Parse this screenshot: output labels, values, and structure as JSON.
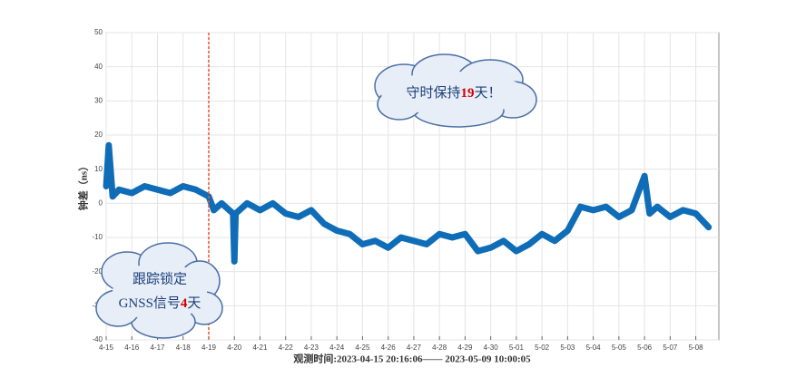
{
  "chart_data": {
    "type": "line",
    "x_label": "观测时间:2023-04-15 20:16:06—— 2023-05-09 10:00:05",
    "y_label": "钟差（ns）",
    "xlim": [
      0,
      23.9
    ],
    "ylim": [
      -40,
      50
    ],
    "xticks": [
      {
        "value": 0,
        "label": "4-15"
      },
      {
        "value": 1,
        "label": "4-16"
      },
      {
        "value": 2,
        "label": "4-17"
      },
      {
        "value": 3,
        "label": "4-18"
      },
      {
        "value": 4,
        "label": "4-19"
      },
      {
        "value": 5,
        "label": "4-20"
      },
      {
        "value": 6,
        "label": "4-21"
      },
      {
        "value": 7,
        "label": "4-22"
      },
      {
        "value": 8,
        "label": "4-23"
      },
      {
        "value": 9,
        "label": "4-24"
      },
      {
        "value": 10,
        "label": "4-25"
      },
      {
        "value": 11,
        "label": "4-26"
      },
      {
        "value": 12,
        "label": "4-27"
      },
      {
        "value": 13,
        "label": "4-28"
      },
      {
        "value": 14,
        "label": "4-29"
      },
      {
        "value": 15,
        "label": "4-30"
      },
      {
        "value": 16,
        "label": "5-01"
      },
      {
        "value": 17,
        "label": "5-02"
      },
      {
        "value": 18,
        "label": "5-03"
      },
      {
        "value": 19,
        "label": "5-04"
      },
      {
        "value": 20,
        "label": "5-05"
      },
      {
        "value": 21,
        "label": "5-06"
      },
      {
        "value": 22,
        "label": "5-07"
      },
      {
        "value": 23,
        "label": "5-08"
      }
    ],
    "yticks": [
      -40,
      -30,
      -20,
      -10,
      0,
      10,
      20,
      30,
      40,
      50
    ],
    "grid": true,
    "marker_x": 4,
    "marker_color": "#e8552e",
    "series": [
      {
        "color": "#0f6db8",
        "x": [
          0,
          0.1,
          0.25,
          0.5,
          1,
          1.5,
          2,
          2.5,
          3,
          3.5,
          4,
          4.2,
          4.5,
          4.95,
          5.0,
          5.05,
          5.5,
          6,
          6.5,
          7,
          7.5,
          8,
          8.5,
          9,
          9.5,
          10,
          10.5,
          11,
          11.5,
          12,
          12.5,
          13,
          13.5,
          14,
          14.5,
          15,
          15.5,
          16,
          16.5,
          17,
          17.5,
          18,
          18.5,
          19,
          19.5,
          20,
          20.5,
          21,
          21.2,
          21.5,
          22,
          22.5,
          23,
          23.5
        ],
        "values": [
          5,
          17,
          2,
          4,
          3,
          5,
          4,
          3,
          5,
          4,
          2,
          -2,
          0,
          -3,
          -17,
          -3,
          0,
          -2,
          0,
          -3,
          -4,
          -2,
          -6,
          -8,
          -9,
          -12,
          -11,
          -13,
          -10,
          -11,
          -12,
          -9,
          -10,
          -9,
          -14,
          -13,
          -11,
          -14,
          -12,
          -9,
          -11,
          -8,
          -1,
          -2,
          -1,
          -4,
          -2,
          8,
          -3,
          -1,
          -4,
          -2,
          -3,
          -7
        ]
      }
    ],
    "annotations": [
      {
        "parts": [
          "守时保持",
          "19",
          "天！"
        ]
      },
      {
        "line1": "跟踪锁定",
        "parts": [
          "GNSS信号",
          "4",
          "天"
        ]
      }
    ]
  }
}
